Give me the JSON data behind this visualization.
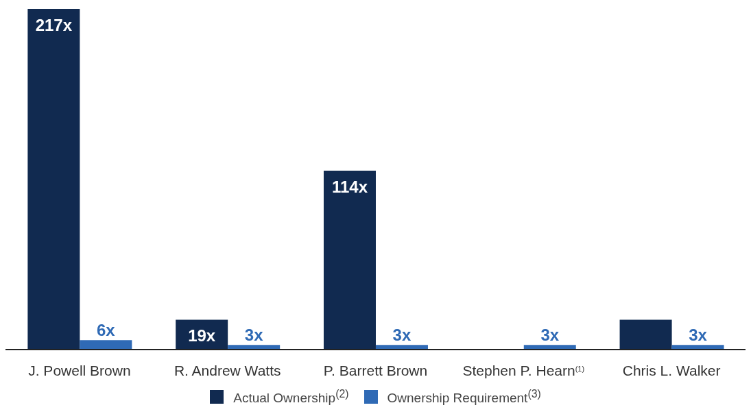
{
  "chart_data": {
    "type": "bar",
    "categories": [
      "J. Powell Brown",
      "R. Andrew Watts",
      "P. Barrett Brown",
      "Stephen P. Hearn$^{(1)}$",
      "Chris L. Walker"
    ],
    "series": [
      {
        "name": "Actual Ownership$^{(2)}$",
        "color": "#112a50",
        "values": [
          217,
          19,
          114,
          null,
          19
        ],
        "value_labels": [
          "217x",
          "19x",
          "114x",
          null,
          null
        ]
      },
      {
        "name": "Ownership Requirement$^{(3)}$",
        "color": "#2f6ab5",
        "values": [
          6,
          3,
          3,
          3,
          3
        ],
        "value_labels": [
          "6x",
          "3x",
          "3x",
          "3x",
          "3x"
        ]
      }
    ],
    "ylim": [
      0,
      217
    ],
    "tick_labels": "x",
    "legend": "bottom"
  }
}
